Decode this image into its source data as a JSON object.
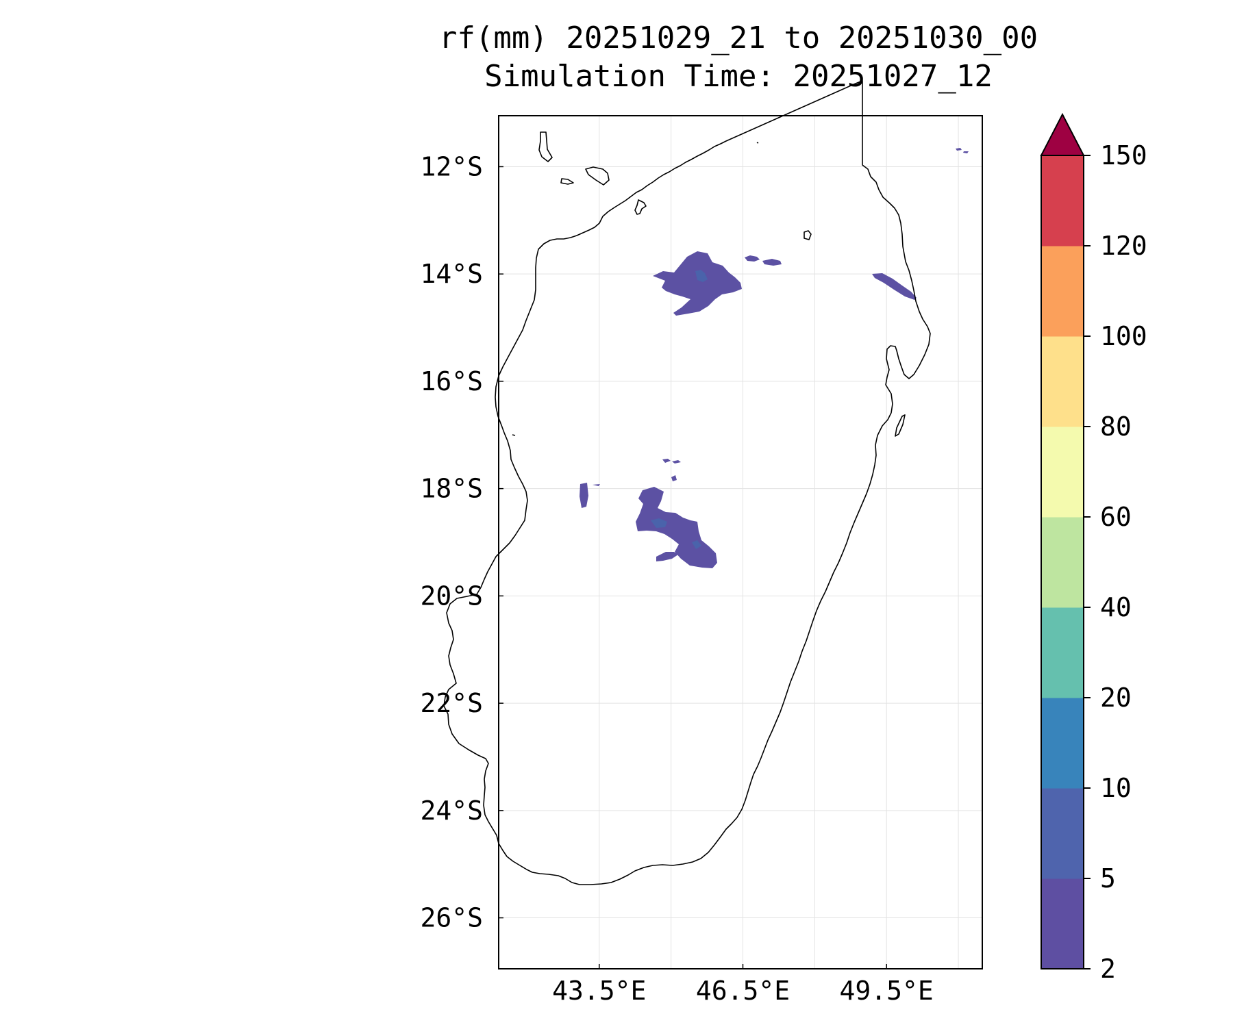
{
  "title": {
    "line1": "rf(mm) 20251029_21 to 20251030_00",
    "line2": "Simulation Time: 20251027_12"
  },
  "map": {
    "lon_range": [
      41.4,
      51.5
    ],
    "lat_range": [
      -26.95,
      -11.05
    ],
    "x_ticks": [
      {
        "value": 43.5,
        "label": "43.5°E"
      },
      {
        "value": 46.5,
        "label": "46.5°E"
      },
      {
        "value": 49.5,
        "label": "49.5°E"
      }
    ],
    "y_ticks": [
      {
        "value": -12,
        "label": "12°S"
      },
      {
        "value": -14,
        "label": "14°S"
      },
      {
        "value": -16,
        "label": "16°S"
      },
      {
        "value": -18,
        "label": "18°S"
      },
      {
        "value": -20,
        "label": "20°S"
      },
      {
        "value": -22,
        "label": "22°S"
      },
      {
        "value": -24,
        "label": "24°S"
      },
      {
        "value": -26,
        "label": "26°S"
      }
    ],
    "grid_lons": [
      43.5,
      45.0,
      46.5,
      48.0,
      49.5,
      51.0
    ],
    "grid_lats": [
      -12,
      -14,
      -16,
      -18,
      -20,
      -22,
      -24,
      -26
    ],
    "coastline_color": "#000000",
    "rain_color": "#5c51a3",
    "rain_core_color": "#4a63ab"
  },
  "colorbar": {
    "levels": [
      "2",
      "5",
      "10",
      "20",
      "40",
      "60",
      "80",
      "100",
      "120",
      "150"
    ],
    "colors": [
      "#5e4fa2",
      "#4f64ad",
      "#3884bb",
      "#65c0ae",
      "#bee5a0",
      "#f4faae",
      "#fee08b",
      "#fba05b",
      "#d6404e"
    ],
    "extend_color": "#9e0142"
  }
}
